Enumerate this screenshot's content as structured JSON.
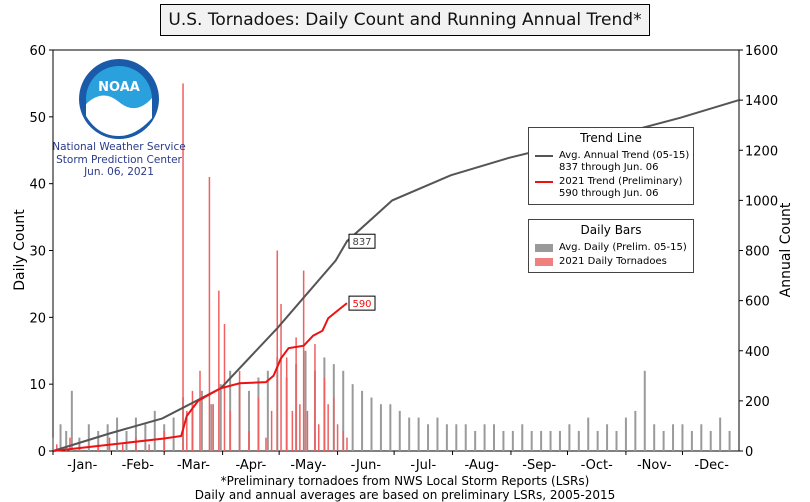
{
  "title": "U.S. Tornadoes: Daily Count and Running Annual Trend*",
  "logo": {
    "text": "NOAA",
    "lines": [
      "National Weather Service",
      "Storm Prediction Center",
      "Jun. 06, 2021"
    ]
  },
  "footer": [
    "*Preliminary tornadoes from NWS Local Storm Reports (LSRs)",
    "Daily and annual averages are based on preliminary LSRs, 2005-2015"
  ],
  "legend_trend": {
    "title": "Trend Line",
    "items": [
      {
        "lines": [
          "Avg. Annual Trend (05-15)",
          "837 through Jun. 06"
        ],
        "color": "#555555"
      },
      {
        "lines": [
          "2021 Trend (Preliminary)",
          "590 through Jun. 06"
        ],
        "color": "#ee1111"
      }
    ]
  },
  "legend_bars": {
    "title": "Daily Bars",
    "items": [
      {
        "label": "Avg. Daily (Prelim. 05-15)",
        "color": "#9a9a9a"
      },
      {
        "label": "2021 Daily Tornadoes",
        "color": "#f08080"
      }
    ]
  },
  "chart_data": {
    "type": "bar+line",
    "ylabel": "Daily Count",
    "y2label": "Annual Count",
    "ylim": [
      0,
      60
    ],
    "y2lim": [
      0,
      1600
    ],
    "yticks": [
      "0",
      "10",
      "20",
      "30",
      "40",
      "50",
      "60"
    ],
    "y2ticks": [
      "0",
      "200",
      "400",
      "600",
      "800",
      "1000",
      "1200",
      "1400",
      "1600"
    ],
    "months": [
      "-Jan-",
      "-Feb-",
      "-Mar-",
      "-Apr-",
      "-May-",
      "-Jun-",
      "-Jul-",
      "-Aug-",
      "-Sep-",
      "-Oct-",
      "-Nov-",
      "-Dec-"
    ],
    "xlim": [
      1,
      365
    ],
    "avg_daily_bars": [
      [
        1,
        2
      ],
      [
        5,
        4
      ],
      [
        8,
        3
      ],
      [
        11,
        9
      ],
      [
        15,
        2
      ],
      [
        20,
        4
      ],
      [
        25,
        3
      ],
      [
        30,
        4
      ],
      [
        35,
        5
      ],
      [
        40,
        3
      ],
      [
        45,
        5
      ],
      [
        50,
        4
      ],
      [
        55,
        6
      ],
      [
        60,
        4
      ],
      [
        65,
        5
      ],
      [
        70,
        8
      ],
      [
        75,
        7
      ],
      [
        80,
        9
      ],
      [
        85,
        7
      ],
      [
        90,
        10
      ],
      [
        95,
        12
      ],
      [
        100,
        10
      ],
      [
        105,
        9
      ],
      [
        110,
        11
      ],
      [
        115,
        12
      ],
      [
        120,
        14
      ],
      [
        125,
        11
      ],
      [
        130,
        13
      ],
      [
        135,
        15
      ],
      [
        140,
        12
      ],
      [
        145,
        14
      ],
      [
        150,
        13
      ],
      [
        155,
        12
      ],
      [
        160,
        10
      ],
      [
        165,
        9
      ],
      [
        170,
        8
      ],
      [
        175,
        7
      ],
      [
        180,
        7
      ],
      [
        185,
        6
      ],
      [
        190,
        5
      ],
      [
        195,
        5
      ],
      [
        200,
        4
      ],
      [
        205,
        5
      ],
      [
        210,
        4
      ],
      [
        215,
        4
      ],
      [
        220,
        4
      ],
      [
        225,
        3
      ],
      [
        230,
        4
      ],
      [
        235,
        4
      ],
      [
        240,
        3
      ],
      [
        245,
        3
      ],
      [
        250,
        4
      ],
      [
        255,
        3
      ],
      [
        260,
        3
      ],
      [
        265,
        3
      ],
      [
        270,
        3
      ],
      [
        275,
        4
      ],
      [
        280,
        3
      ],
      [
        285,
        5
      ],
      [
        290,
        3
      ],
      [
        295,
        4
      ],
      [
        300,
        3
      ],
      [
        305,
        5
      ],
      [
        310,
        6
      ],
      [
        315,
        12
      ],
      [
        320,
        4
      ],
      [
        325,
        3
      ],
      [
        330,
        4
      ],
      [
        335,
        4
      ],
      [
        340,
        3
      ],
      [
        345,
        4
      ],
      [
        350,
        3
      ],
      [
        355,
        5
      ],
      [
        360,
        3
      ]
    ],
    "daily_2021_bars": [
      [
        3,
        1
      ],
      [
        10,
        2
      ],
      [
        15,
        1
      ],
      [
        25,
        1
      ],
      [
        31,
        2
      ],
      [
        38,
        1
      ],
      [
        45,
        2
      ],
      [
        52,
        1
      ],
      [
        60,
        3
      ],
      [
        70,
        55
      ],
      [
        72,
        6
      ],
      [
        75,
        9
      ],
      [
        79,
        12
      ],
      [
        84,
        41
      ],
      [
        86,
        7
      ],
      [
        89,
        24
      ],
      [
        92,
        19
      ],
      [
        95,
        6
      ],
      [
        100,
        12
      ],
      [
        105,
        3
      ],
      [
        110,
        8
      ],
      [
        114,
        2
      ],
      [
        117,
        6
      ],
      [
        120,
        30
      ],
      [
        122,
        22
      ],
      [
        125,
        14
      ],
      [
        128,
        6
      ],
      [
        130,
        17
      ],
      [
        132,
        7
      ],
      [
        134,
        27
      ],
      [
        136,
        6
      ],
      [
        140,
        16
      ],
      [
        142,
        4
      ],
      [
        145,
        11
      ],
      [
        147,
        7
      ],
      [
        150,
        8
      ],
      [
        152,
        4
      ],
      [
        155,
        3
      ],
      [
        157,
        2
      ]
    ],
    "series": [
      {
        "name": "Avg. Annual Trend (05-15)",
        "unit": "annual",
        "points": [
          [
            1,
            0
          ],
          [
            31,
            70
          ],
          [
            59,
            130
          ],
          [
            90,
            250
          ],
          [
            120,
            490
          ],
          [
            151,
            760
          ],
          [
            157,
            837
          ],
          [
            181,
            1000
          ],
          [
            212,
            1100
          ],
          [
            243,
            1170
          ],
          [
            273,
            1225
          ],
          [
            304,
            1270
          ],
          [
            334,
            1330
          ],
          [
            365,
            1400
          ]
        ]
      },
      {
        "name": "2021 Trend (Preliminary)",
        "unit": "annual",
        "points": [
          [
            1,
            0
          ],
          [
            60,
            50
          ],
          [
            69,
            60
          ],
          [
            72,
            140
          ],
          [
            78,
            200
          ],
          [
            85,
            230
          ],
          [
            90,
            250
          ],
          [
            100,
            270
          ],
          [
            114,
            275
          ],
          [
            118,
            300
          ],
          [
            122,
            370
          ],
          [
            126,
            410
          ],
          [
            134,
            420
          ],
          [
            139,
            460
          ],
          [
            144,
            480
          ],
          [
            147,
            530
          ],
          [
            152,
            560
          ],
          [
            157,
            590
          ]
        ]
      }
    ],
    "labels": [
      {
        "text": "837",
        "x": 157,
        "y": 837,
        "color": "#444444"
      },
      {
        "text": "590",
        "x": 157,
        "y": 590,
        "color": "#ee1111"
      }
    ]
  }
}
